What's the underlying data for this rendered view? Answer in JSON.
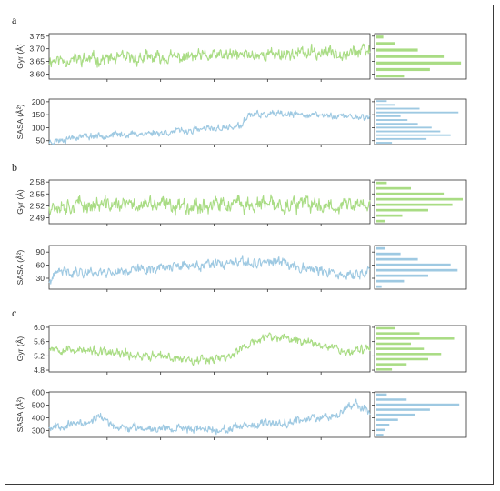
{
  "colors": {
    "gyr": "#a9dc84",
    "sasa": "#9ec9e2",
    "axis": "#333333"
  },
  "panels": [
    {
      "letter": "a"
    },
    {
      "letter": "b"
    },
    {
      "letter": "c"
    }
  ],
  "chart_data": [
    {
      "panel": "a",
      "type": "line",
      "series_kind": "gyr",
      "ylabel": "Gyr (Å)",
      "yticks": [
        "3.75",
        "3.70",
        "3.65",
        "3.60"
      ],
      "ylim": [
        3.58,
        3.76
      ],
      "y": {
        "points": 600,
        "seed": 11,
        "noise": 0.018,
        "trend": [
          [
            0,
            3.655
          ],
          [
            0.4,
            3.665
          ],
          [
            0.6,
            3.675
          ],
          [
            1,
            3.69
          ]
        ]
      },
      "histogram": [
        0.32,
        0.62,
        0.98,
        0.78,
        0.48,
        0.22,
        0.08
      ]
    },
    {
      "panel": "a",
      "type": "line",
      "series_kind": "sasa",
      "ylabel": "SASA (Å²)",
      "yticks": [
        "200",
        "150",
        "100",
        "50"
      ],
      "ylim": [
        35,
        210
      ],
      "y": {
        "points": 600,
        "seed": 23,
        "noise": 9,
        "trend": [
          [
            0,
            45
          ],
          [
            0.08,
            65
          ],
          [
            0.25,
            75
          ],
          [
            0.4,
            85
          ],
          [
            0.55,
            100
          ],
          [
            0.6,
            105
          ],
          [
            0.62,
            150
          ],
          [
            0.8,
            150
          ],
          [
            1,
            140
          ]
        ]
      },
      "histogram": [
        0.18,
        0.58,
        0.86,
        0.74,
        0.64,
        0.48,
        0.36,
        0.28,
        0.95,
        0.5,
        0.22,
        0.12
      ]
    },
    {
      "panel": "b",
      "type": "line",
      "series_kind": "gyr",
      "ylabel": "Gyr (Å)",
      "yticks": [
        "2.58",
        "2.55",
        "2.52",
        "2.49"
      ],
      "ylim": [
        2.475,
        2.585
      ],
      "y": {
        "points": 600,
        "seed": 37,
        "noise": 0.014,
        "trend": [
          [
            0,
            2.522
          ],
          [
            1,
            2.522
          ]
        ]
      },
      "histogram": [
        0.1,
        0.3,
        0.6,
        0.88,
        1.0,
        0.78,
        0.4,
        0.12
      ]
    },
    {
      "panel": "b",
      "type": "line",
      "series_kind": "sasa",
      "ylabel": "SASA (Å²)",
      "yticks": [
        "90",
        "60",
        "30"
      ],
      "ylim": [
        5,
        105
      ],
      "y": {
        "points": 600,
        "seed": 41,
        "noise": 8,
        "trend": [
          [
            0,
            20
          ],
          [
            0.03,
            45
          ],
          [
            0.2,
            45
          ],
          [
            0.35,
            55
          ],
          [
            0.5,
            60
          ],
          [
            0.7,
            68
          ],
          [
            0.8,
            55
          ],
          [
            0.88,
            40
          ],
          [
            0.95,
            35
          ],
          [
            1,
            50
          ]
        ]
      },
      "histogram": [
        0.06,
        0.32,
        0.6,
        0.94,
        0.86,
        0.48,
        0.28,
        0.1
      ]
    },
    {
      "panel": "c",
      "type": "line",
      "series_kind": "gyr",
      "ylabel": "Gyr (Å)",
      "yticks": [
        "6.0",
        "5.6",
        "5.2",
        "4.8"
      ],
      "ylim": [
        4.75,
        6.05
      ],
      "y": {
        "points": 600,
        "seed": 53,
        "noise": 0.09,
        "trend": [
          [
            0,
            5.45
          ],
          [
            0.15,
            5.3
          ],
          [
            0.3,
            5.2
          ],
          [
            0.45,
            5.1
          ],
          [
            0.55,
            5.15
          ],
          [
            0.62,
            5.5
          ],
          [
            0.68,
            5.75
          ],
          [
            0.8,
            5.6
          ],
          [
            0.88,
            5.5
          ],
          [
            0.92,
            5.3
          ],
          [
            1,
            5.4
          ]
        ]
      },
      "histogram": [
        0.18,
        0.35,
        0.6,
        0.75,
        0.55,
        0.4,
        0.9,
        0.5,
        0.22
      ]
    },
    {
      "panel": "c",
      "type": "line",
      "series_kind": "sasa",
      "ylabel": "SASA (Å²)",
      "yticks": [
        "600",
        "500",
        "400",
        "300"
      ],
      "ylim": [
        245,
        605
      ],
      "y": {
        "points": 600,
        "seed": 67,
        "noise": 22,
        "trend": [
          [
            0,
            330
          ],
          [
            0.12,
            360
          ],
          [
            0.16,
            420
          ],
          [
            0.2,
            320
          ],
          [
            0.4,
            320
          ],
          [
            0.55,
            305
          ],
          [
            0.65,
            340
          ],
          [
            0.78,
            380
          ],
          [
            0.9,
            430
          ],
          [
            0.95,
            520
          ],
          [
            1,
            440
          ]
        ]
      },
      "histogram": [
        0.08,
        0.1,
        0.15,
        0.25,
        0.45,
        0.62,
        0.96,
        0.35,
        0.12
      ]
    }
  ]
}
